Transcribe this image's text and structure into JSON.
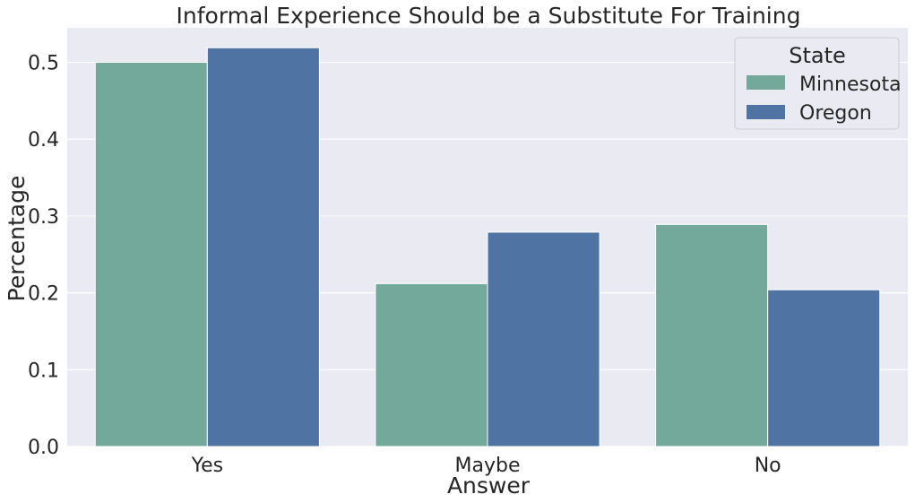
{
  "chart_data": {
    "type": "bar",
    "title": "Informal Experience Should be a Substitute For Training",
    "xlabel": "Answer",
    "ylabel": "Percentage",
    "categories": [
      "Yes",
      "Maybe",
      "No"
    ],
    "series": [
      {
        "name": "Minnesota",
        "values": [
          0.5,
          0.212,
          0.289
        ],
        "color": "#72a99b"
      },
      {
        "name": "Oregon",
        "values": [
          0.519,
          0.279,
          0.204
        ],
        "color": "#4f74a4"
      }
    ],
    "ylim": [
      0,
      0.545
    ],
    "yticks": [
      0.0,
      0.1,
      0.2,
      0.3,
      0.4,
      0.5
    ],
    "ytick_labels": [
      "0.0",
      "0.1",
      "0.2",
      "0.3",
      "0.4",
      "0.5"
    ],
    "grid": true,
    "legend": {
      "title": "State",
      "placement": "top-right"
    },
    "colors": {
      "plot_background": "#eaeaf2",
      "grid": "#ffffff",
      "text": "#262626"
    }
  }
}
